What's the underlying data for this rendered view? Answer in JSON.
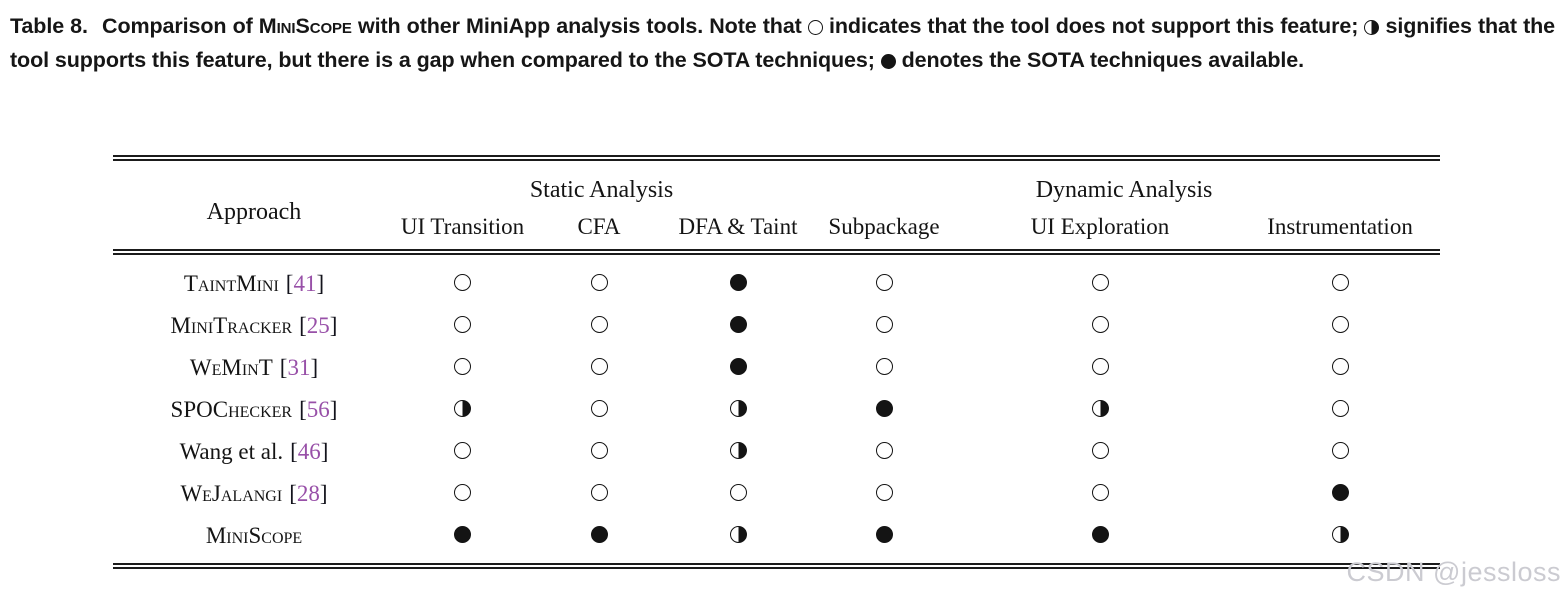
{
  "caption": {
    "label": "Table 8.",
    "part1": "Comparison of",
    "tool_name": "MiniScope",
    "part2": "with other MiniApp analysis tools. Note that",
    "part3": "indicates that the tool does not support this feature;",
    "part4": "signifies that the tool supports this feature, but there is a gap when compared to the SOTA techniques;",
    "part5": "denotes the SOTA techniques available."
  },
  "table": {
    "corner_header": "Approach",
    "groups": [
      {
        "label": "Static Analysis",
        "span": 3
      },
      {
        "label": "Dynamic Analysis",
        "span": 3
      }
    ],
    "columns": [
      "UI Transition",
      "CFA",
      "DFA & Taint",
      "Subpackage",
      "UI Exploration",
      "Instrumentation"
    ],
    "symbols": {
      "none": {
        "glyph": "○",
        "icon": "circle-empty-icon"
      },
      "partial": {
        "glyph": "◑",
        "icon": "circle-half-icon"
      },
      "full": {
        "glyph": "●",
        "icon": "circle-full-icon"
      }
    },
    "rows": [
      {
        "approach": "TaintMini",
        "smallcaps": true,
        "cite": "41",
        "cells": [
          "none",
          "none",
          "full",
          "none",
          "none",
          "none"
        ]
      },
      {
        "approach": "MiniTracker",
        "smallcaps": true,
        "cite": "25",
        "cells": [
          "none",
          "none",
          "full",
          "none",
          "none",
          "none"
        ]
      },
      {
        "approach": "WeMinT",
        "smallcaps": true,
        "cite": "31",
        "cells": [
          "none",
          "none",
          "full",
          "none",
          "none",
          "none"
        ]
      },
      {
        "approach": "SPOChecker",
        "smallcaps": true,
        "cite": "56",
        "cells": [
          "partial",
          "none",
          "partial",
          "full",
          "partial",
          "none"
        ]
      },
      {
        "approach": "Wang et al.",
        "smallcaps": false,
        "cite": "46",
        "cells": [
          "none",
          "none",
          "partial",
          "none",
          "none",
          "none"
        ]
      },
      {
        "approach": "WeJalangi",
        "smallcaps": true,
        "cite": "28",
        "cells": [
          "none",
          "none",
          "none",
          "none",
          "none",
          "full"
        ]
      },
      {
        "approach": "MiniScope",
        "smallcaps": true,
        "cite": null,
        "cells": [
          "full",
          "full",
          "partial",
          "full",
          "full",
          "partial"
        ]
      }
    ]
  },
  "colors": {
    "citation": "#9850a8",
    "text": "#141414",
    "rule": "#1b1b1b",
    "watermark": "#cbcbd1"
  },
  "watermark": "CSDN @jessloss"
}
